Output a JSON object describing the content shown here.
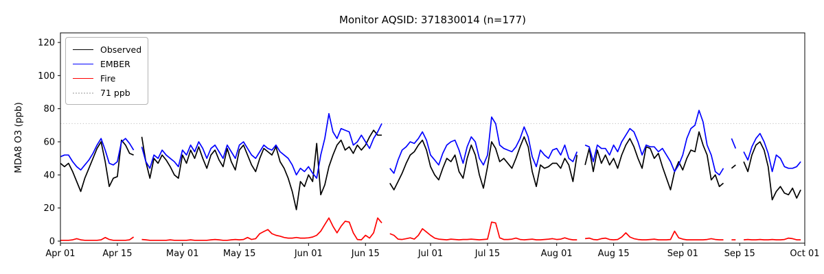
{
  "title": "Monitor AQSID: 371830014 (n=177)",
  "legend": {
    "items": [
      {
        "label": "Observed",
        "color": "#000000",
        "style": "solid"
      },
      {
        "label": "EMBER",
        "color": "#0000ff",
        "style": "solid"
      },
      {
        "label": "Fire",
        "color": "#ff0000",
        "style": "solid"
      },
      {
        "label": "71 ppb",
        "color": "#c9c9c9",
        "style": "dotted"
      }
    ]
  },
  "chart_data": {
    "type": "line",
    "title": "Monitor AQSID: 371830014 (n=177)",
    "xlabel": "",
    "ylabel": "MDA8 O3 (ppb)",
    "x_unit": "days since Apr 01",
    "x_range_days": 183,
    "ylim": [
      -1.5,
      126
    ],
    "yticks": [
      0,
      20,
      40,
      60,
      80,
      100,
      120
    ],
    "xticks": [
      {
        "day": 0,
        "label": "Apr 01"
      },
      {
        "day": 14,
        "label": "Apr 15"
      },
      {
        "day": 30,
        "label": "May 01"
      },
      {
        "day": 44,
        "label": "May 15"
      },
      {
        "day": 61,
        "label": "Jun 01"
      },
      {
        "day": 75,
        "label": "Jun 15"
      },
      {
        "day": 91,
        "label": "Jul 01"
      },
      {
        "day": 105,
        "label": "Jul 15"
      },
      {
        "day": 122,
        "label": "Aug 01"
      },
      {
        "day": 136,
        "label": "Aug 15"
      },
      {
        "day": 153,
        "label": "Sep 01"
      },
      {
        "day": 167,
        "label": "Sep 15"
      },
      {
        "day": 183,
        "label": "Oct 01"
      }
    ],
    "threshold": {
      "value": 71,
      "label": "71 ppb",
      "color": "#c9c9c9",
      "style": "dotted"
    },
    "grid": false,
    "legend_position": "upper left",
    "series": [
      {
        "name": "Observed",
        "color": "#000000",
        "values": [
          47,
          45,
          47,
          42,
          36,
          30,
          38,
          44,
          50,
          56,
          60,
          48,
          33,
          38,
          39,
          61,
          58,
          53,
          52,
          null,
          63,
          48,
          38,
          50,
          47,
          52,
          49,
          45,
          40,
          38,
          52,
          47,
          55,
          50,
          57,
          50,
          44,
          52,
          55,
          49,
          45,
          56,
          48,
          43,
          55,
          58,
          52,
          46,
          42,
          50,
          56,
          54,
          52,
          57,
          48,
          44,
          38,
          30,
          19,
          36,
          33,
          40,
          36,
          59,
          28,
          34,
          45,
          52,
          58,
          61,
          55,
          57,
          53,
          58,
          55,
          58,
          63,
          67,
          64,
          64,
          null,
          35,
          31,
          36,
          41,
          47,
          52,
          54,
          58,
          61,
          55,
          45,
          40,
          37,
          44,
          50,
          48,
          52,
          42,
          38,
          50,
          58,
          52,
          40,
          32,
          45,
          60,
          56,
          48,
          50,
          47,
          44,
          50,
          57,
          63,
          57,
          42,
          33,
          46,
          44,
          45,
          47,
          47,
          44,
          50,
          46,
          36,
          52,
          null,
          46,
          56,
          42,
          55,
          47,
          52,
          46,
          50,
          44,
          52,
          58,
          62,
          57,
          50,
          44,
          57,
          56,
          50,
          53,
          45,
          38,
          31,
          42,
          48,
          43,
          50,
          55,
          54,
          66,
          58,
          52,
          37,
          40,
          33,
          35,
          null,
          44,
          46,
          null,
          48,
          42,
          52,
          58,
          60,
          55,
          45,
          25,
          30,
          33,
          29,
          28,
          32,
          26,
          31
        ]
      },
      {
        "name": "EMBER",
        "color": "#0000ff",
        "values": [
          51,
          52,
          52,
          48,
          45,
          43,
          46,
          49,
          53,
          58,
          62,
          55,
          47,
          46,
          48,
          60,
          62,
          59,
          55,
          null,
          57,
          48,
          44,
          52,
          50,
          55,
          52,
          50,
          48,
          45,
          55,
          52,
          58,
          54,
          60,
          56,
          50,
          56,
          58,
          54,
          50,
          58,
          54,
          50,
          58,
          60,
          56,
          52,
          50,
          54,
          58,
          56,
          55,
          58,
          54,
          52,
          50,
          46,
          40,
          44,
          42,
          45,
          41,
          38,
          52,
          62,
          77,
          66,
          62,
          68,
          67,
          66,
          58,
          60,
          64,
          60,
          56,
          62,
          66,
          71,
          null,
          44,
          41,
          49,
          55,
          57,
          60,
          59,
          62,
          66,
          61,
          52,
          49,
          46,
          53,
          58,
          60,
          61,
          55,
          47,
          57,
          63,
          60,
          50,
          46,
          52,
          75,
          71,
          58,
          56,
          55,
          54,
          57,
          62,
          69,
          63,
          51,
          45,
          55,
          52,
          50,
          55,
          56,
          52,
          58,
          50,
          48,
          54,
          null,
          58,
          57,
          48,
          58,
          56,
          56,
          52,
          58,
          54,
          60,
          64,
          68,
          66,
          60,
          52,
          58,
          57,
          57,
          54,
          56,
          52,
          48,
          42,
          46,
          52,
          62,
          68,
          70,
          79,
          72,
          58,
          52,
          42,
          40,
          44,
          null,
          62,
          56,
          null,
          54,
          49,
          57,
          62,
          65,
          60,
          53,
          42,
          52,
          50,
          45,
          44,
          44,
          45,
          48
        ]
      },
      {
        "name": "Fire",
        "color": "#ff0000",
        "values": [
          0.5,
          0.5,
          0.5,
          0.8,
          1.5,
          0.8,
          0.5,
          0.5,
          0.5,
          0.5,
          0.8,
          2.2,
          1,
          0.5,
          0.5,
          0.5,
          0.5,
          0.8,
          2.5,
          null,
          1,
          0.8,
          0.5,
          0.5,
          0.5,
          0.5,
          0.5,
          0.8,
          0.5,
          0.5,
          0.5,
          0.5,
          0.8,
          0.5,
          0.5,
          0.5,
          0.5,
          0.8,
          1,
          0.8,
          0.5,
          0.5,
          0.8,
          1,
          0.8,
          1,
          2.2,
          1,
          1.5,
          4.5,
          5.8,
          7,
          4.5,
          3.5,
          3,
          2.2,
          1.8,
          1.8,
          2.2,
          1.8,
          1.8,
          2,
          2.5,
          3.5,
          6,
          10,
          14,
          9,
          5,
          9,
          12,
          11.5,
          5,
          1,
          0.8,
          3.5,
          1.8,
          5,
          14,
          11,
          null,
          4.5,
          3.5,
          1.2,
          1,
          1.5,
          2,
          1.2,
          3.5,
          7.5,
          5.5,
          3.5,
          1.8,
          1.2,
          1,
          0.8,
          1.2,
          1,
          0.8,
          1,
          1,
          1.2,
          1,
          0.8,
          1,
          1.2,
          11.5,
          11,
          2,
          1,
          1,
          1.2,
          1.8,
          1,
          0.8,
          1,
          1.2,
          0.8,
          0.8,
          1,
          1.2,
          1.5,
          1,
          1.2,
          2,
          1.2,
          0.8,
          0.8,
          null,
          1.5,
          1.8,
          1,
          0.8,
          1.5,
          1.8,
          1,
          0.8,
          1,
          2.5,
          5,
          2.5,
          1.5,
          1,
          0.8,
          0.8,
          1,
          1.2,
          0.8,
          0.8,
          0.8,
          1,
          6,
          2,
          1.2,
          0.8,
          0.8,
          0.8,
          0.8,
          0.8,
          1,
          1.5,
          1,
          0.8,
          0.8,
          null,
          0.8,
          0.8,
          null,
          0.8,
          1,
          0.8,
          0.8,
          1,
          0.8,
          0.8,
          1,
          0.8,
          0.8,
          1,
          1.8,
          1.5,
          0.8,
          0.8
        ]
      }
    ]
  }
}
